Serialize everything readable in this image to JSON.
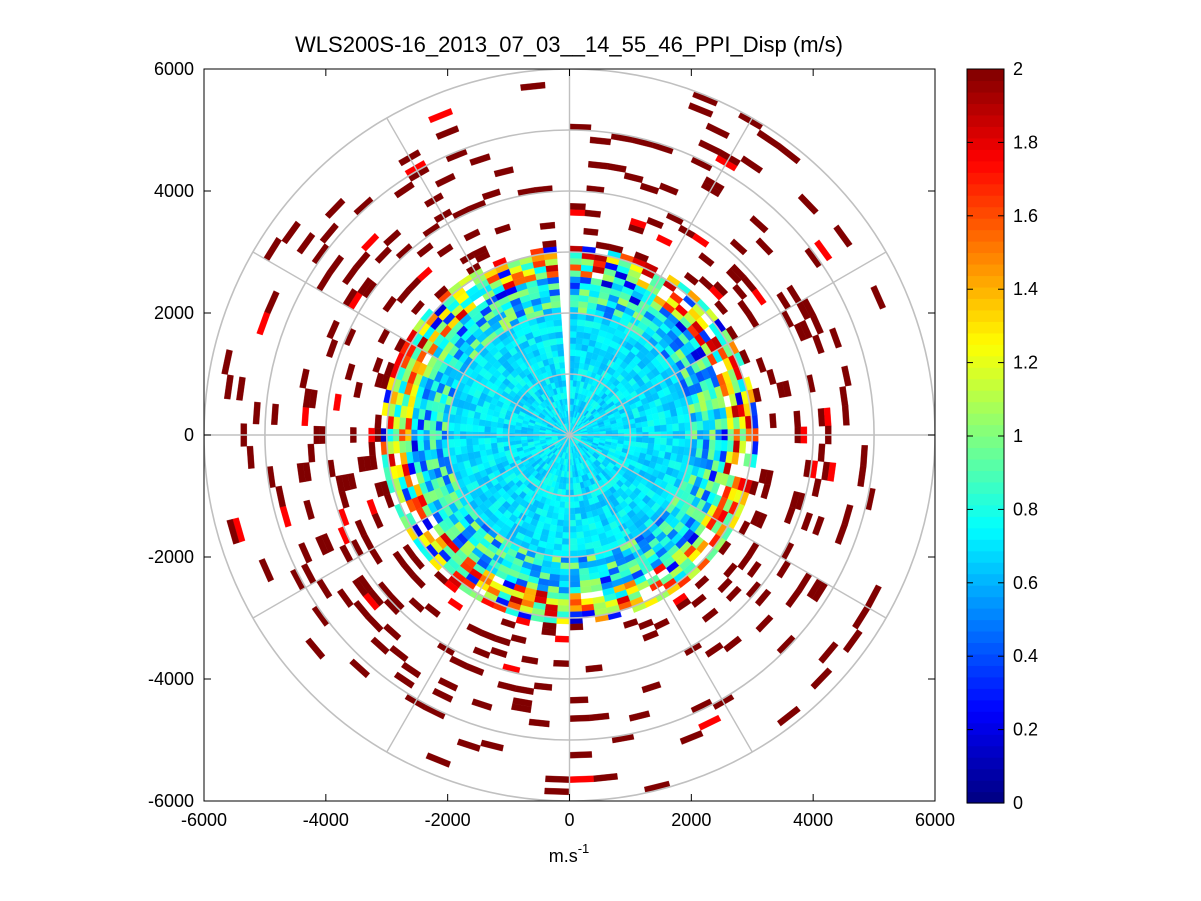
{
  "chart_data": {
    "type": "heatmap",
    "subtype": "polar-ppi",
    "title": "WLS200S-16_2013_07_03__14_55_46_PPI_Disp (m/s)",
    "xlabel": "m.s",
    "xlabel_superscript": "-1",
    "ylabel": "",
    "xlim": [
      -6000,
      6000
    ],
    "ylim": [
      -6000,
      6000
    ],
    "xticks": [
      -6000,
      -4000,
      -2000,
      0,
      2000,
      4000,
      6000
    ],
    "yticks": [
      6000,
      4000,
      2000,
      0,
      -2000,
      -4000,
      -6000
    ],
    "xtick_labels": [
      "-6000",
      "-4000",
      "-2000",
      "0",
      "2000",
      "4000",
      "6000"
    ],
    "ytick_labels": [
      "6000",
      "4000",
      "2000",
      "0",
      "-2000",
      "-4000",
      "-6000"
    ],
    "polar_grid": {
      "ring_radii": [
        1000,
        2000,
        3000,
        4000,
        5000,
        6000
      ],
      "spoke_angles_deg": [
        0,
        30,
        60,
        90,
        120,
        150,
        180,
        210,
        240,
        270,
        300,
        330
      ],
      "color": "#c0c0c0"
    },
    "colorbar": {
      "min": 0,
      "max": 2,
      "ticks": [
        2,
        1.8,
        1.6,
        1.4,
        1.2,
        1,
        0.8,
        0.6,
        0.4,
        0.2,
        0
      ],
      "tick_labels": [
        "2",
        "1.8",
        "1.6",
        "1.4",
        "1.2",
        "1",
        "0.8",
        "0.6",
        "0.4",
        "0.2",
        "0"
      ],
      "colormap": "jet",
      "levels": 64
    },
    "scan": {
      "range_gate_m": 100,
      "beam_width_deg": 4,
      "inner_radius_m": 0,
      "outer_radius_m": 6000,
      "dense_region_radius_m": 3000,
      "missing_azimuth_deg": [
        356,
        360
      ],
      "value_profile": [
        {
          "range_m": [
            0,
            2000
          ],
          "typical_value": 0.7,
          "spread": 0.1
        },
        {
          "range_m": [
            2000,
            2600
          ],
          "typical_value": 0.75,
          "spread": 0.35
        },
        {
          "range_m": [
            2600,
            3100
          ],
          "typical_value": 1.3,
          "spread": 0.6
        },
        {
          "range_m": [
            3100,
            6000
          ],
          "typical_value": 2.0,
          "spread": 0.05,
          "coverage": "sparse"
        }
      ]
    }
  }
}
